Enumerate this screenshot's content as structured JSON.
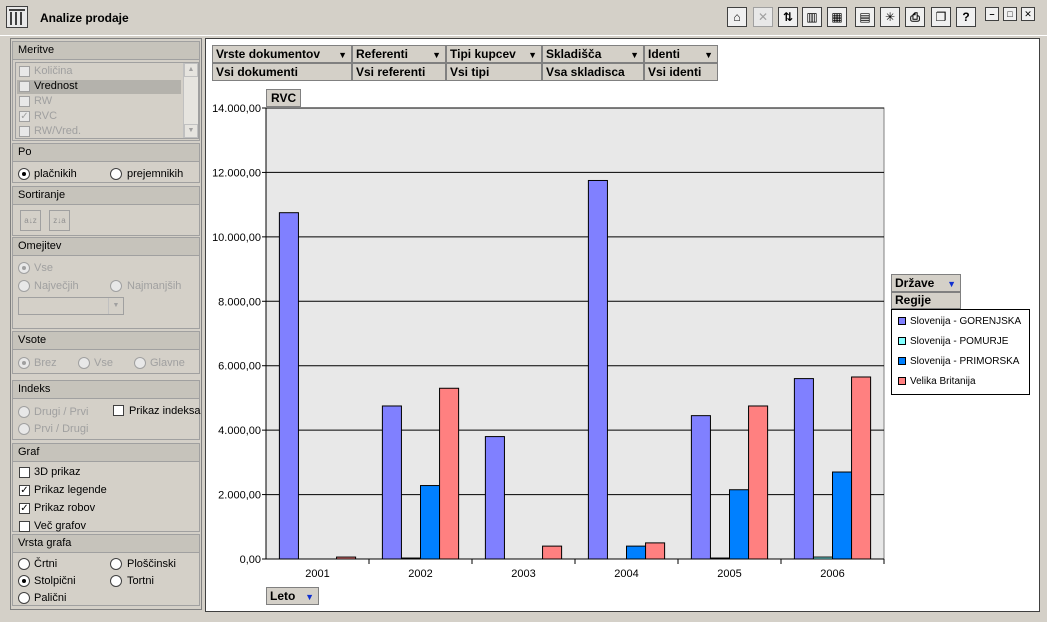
{
  "window": {
    "title": "Analize prodaje"
  },
  "toolbar": {
    "buttons": [
      {
        "name": "home-icon",
        "glyph": "⌂",
        "enabled": true
      },
      {
        "name": "excel-icon",
        "glyph": "✕",
        "enabled": false
      },
      {
        "name": "swap-axes-icon",
        "glyph": "⇅",
        "enabled": true
      },
      {
        "name": "bar-chart-icon",
        "glyph": "▥",
        "enabled": true
      },
      {
        "name": "table-icon",
        "glyph": "▦",
        "enabled": true
      },
      {
        "name": "document-icon",
        "glyph": "▤",
        "enabled": true
      },
      {
        "name": "magic-wand-icon",
        "glyph": "✳",
        "enabled": true
      },
      {
        "name": "print-icon",
        "glyph": "⎙",
        "enabled": true
      },
      {
        "name": "copy-icon",
        "glyph": "❐",
        "enabled": true
      },
      {
        "name": "help-icon",
        "glyph": "?",
        "enabled": true
      }
    ],
    "window_buttons": [
      {
        "name": "minimize-icon",
        "glyph": "–"
      },
      {
        "name": "maximize-icon",
        "glyph": "□"
      },
      {
        "name": "close-icon",
        "glyph": "✕"
      }
    ]
  },
  "sidebar": {
    "meritve": {
      "title": "Meritve",
      "items": [
        {
          "label": "Količina",
          "checked": false,
          "enabled": false
        },
        {
          "label": "Vrednost",
          "checked": false,
          "enabled": true,
          "selected": true
        },
        {
          "label": "RW",
          "checked": false,
          "enabled": false
        },
        {
          "label": "RVC",
          "checked": true,
          "enabled": false
        },
        {
          "label": "RW/Vred.",
          "checked": false,
          "enabled": false
        }
      ]
    },
    "po": {
      "title": "Po",
      "options": [
        "plačnikih",
        "prejemnikih"
      ],
      "selected": 0
    },
    "sortiranje": {
      "title": "Sortiranje",
      "asc_glyph": "a↓z",
      "desc_glyph": "z↓a"
    },
    "omejitev": {
      "title": "Omejitev",
      "options": [
        "Vse",
        "Največjih",
        "Najmanjših"
      ],
      "selected": 0
    },
    "vsote": {
      "title": "Vsote",
      "options": [
        "Brez",
        "Vse",
        "Glavne"
      ],
      "selected": 0
    },
    "indeks": {
      "title": "Indeks",
      "options": [
        "Drugi / Prvi",
        "Prvi / Drugi"
      ],
      "checkbox": "Prikaz indeksa"
    },
    "graf": {
      "title": "Graf",
      "items": [
        {
          "label": "3D prikaz",
          "checked": false
        },
        {
          "label": "Prikaz legende",
          "checked": true
        },
        {
          "label": "Prikaz robov",
          "checked": true
        },
        {
          "label": "Več grafov",
          "checked": false
        }
      ]
    },
    "vrsta_grafa": {
      "title": "Vrsta grafa",
      "options": [
        "Črtni",
        "Ploščinski",
        "Stolpični",
        "Tortni",
        "Palični"
      ],
      "selected": 2
    }
  },
  "filters": {
    "headers": [
      "Vrste dokumentov",
      "Referenti",
      "Tipi kupcev",
      "Skladišča",
      "Identi"
    ],
    "values": [
      "Vsi dokumenti",
      "Vsi referenti",
      "Vsi tipi",
      "Vsa skladisca",
      "Vsi identi"
    ]
  },
  "chart_field_labels": {
    "measure": "RVC",
    "category": "Leto",
    "series_header": "Države",
    "series_sub": "Regije"
  },
  "chart_data": {
    "type": "bar",
    "title": "",
    "xlabel": "Leto",
    "ylabel": "RVC",
    "categories": [
      "2001",
      "2002",
      "2003",
      "2004",
      "2005",
      "2006"
    ],
    "ylim": [
      0,
      14000
    ],
    "yticks": [
      "0,00",
      "2.000,00",
      "4.000,00",
      "6.000,00",
      "8.000,00",
      "10.000,00",
      "12.000,00",
      "14.000,00"
    ],
    "grid": true,
    "legend": "right",
    "series": [
      {
        "name": "Slovenija - GORENJSKA",
        "color": "#8080ff",
        "values": [
          10750,
          4750,
          3800,
          11750,
          4450,
          5600
        ]
      },
      {
        "name": "Slovenija - POMURJE",
        "color": "#80ffff",
        "values": [
          0,
          30,
          0,
          0,
          30,
          60
        ]
      },
      {
        "name": "Slovenija - PRIMORSKA",
        "color": "#0080ff",
        "values": [
          0,
          2280,
          0,
          400,
          2150,
          2700
        ]
      },
      {
        "name": "Velika Britanija",
        "color": "#ff8080",
        "values": [
          60,
          5300,
          400,
          500,
          4750,
          5650
        ]
      }
    ]
  }
}
